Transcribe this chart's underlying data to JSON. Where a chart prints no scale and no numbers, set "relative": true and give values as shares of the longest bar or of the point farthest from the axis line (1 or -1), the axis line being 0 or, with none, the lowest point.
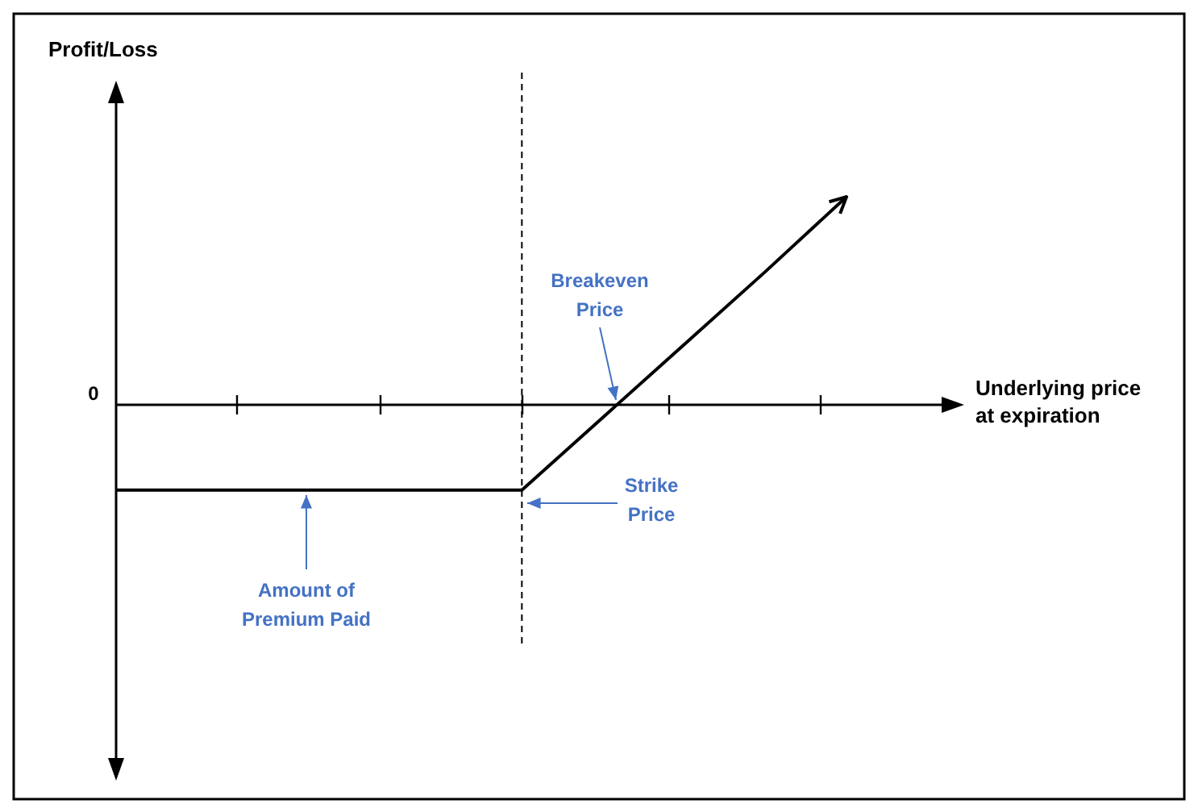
{
  "chart_data": {
    "type": "line",
    "relative": true,
    "xlabel": "Underlying price at expiration",
    "categories": [
      null,
      null,
      null,
      null,
      null,
      null,
      null,
      null,
      null,
      null
    ],
    "series": [
      {
        "color": "#000000",
        "values": [
          -0.41,
          -0.41,
          -0.41,
          -0.41,
          -0.41,
          -0.41,
          -0.06,
          0.29,
          0.64,
          1
        ]
      }
    ],
    "annotations": [
      "Profit/Loss",
      "0",
      "Breakeven Price",
      "Strike Price",
      "Amount of Premium Paid"
    ],
    "marker": "none"
  }
}
